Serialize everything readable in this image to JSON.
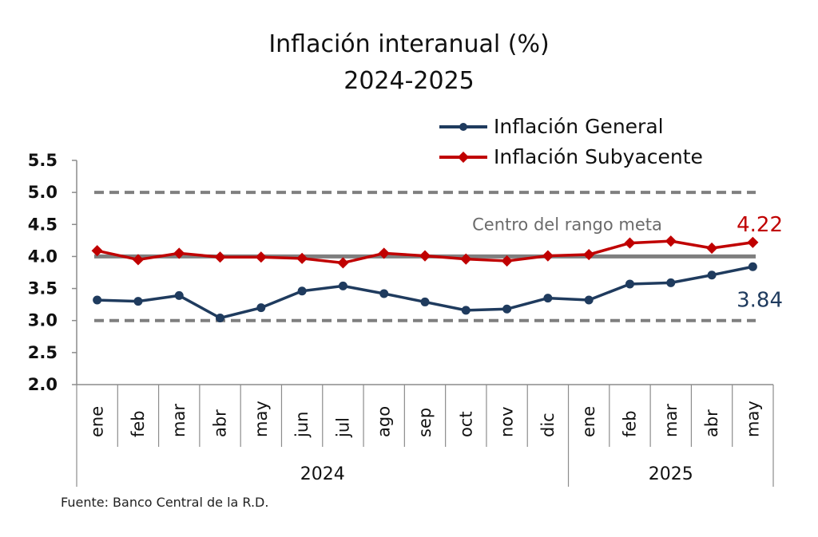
{
  "chart_data": {
    "type": "line",
    "title": "Inflación interanual (%)",
    "subtitle": "2024-2025",
    "categories": [
      "ene",
      "feb",
      "mar",
      "abr",
      "may",
      "jun",
      "jul",
      "ago",
      "sep",
      "oct",
      "nov",
      "dic",
      "ene",
      "feb",
      "mar",
      "abr",
      "may"
    ],
    "year_groups": [
      {
        "label": "2024",
        "count": 12
      },
      {
        "label": "2025",
        "count": 5
      }
    ],
    "series": [
      {
        "name": "Inflación General",
        "color": "#1f3b5e",
        "values": [
          3.32,
          3.3,
          3.39,
          3.04,
          3.2,
          3.46,
          3.54,
          3.42,
          3.29,
          3.16,
          3.18,
          3.35,
          3.32,
          3.57,
          3.59,
          3.71,
          3.84
        ]
      },
      {
        "name": "Inflación Subyacente",
        "color": "#c00000",
        "values": [
          4.09,
          3.95,
          4.05,
          3.99,
          3.99,
          3.97,
          3.9,
          4.05,
          4.01,
          3.96,
          3.93,
          4.01,
          4.03,
          4.21,
          4.24,
          4.13,
          4.22
        ]
      }
    ],
    "ylim": [
      2.0,
      5.5
    ],
    "yticks": [
      "2.0",
      "2.5",
      "3.0",
      "3.5",
      "4.0",
      "4.5",
      "5.0",
      "5.5"
    ],
    "reference_lines": [
      {
        "value": 5.0,
        "style": "dashed",
        "color": "#7f7f7f"
      },
      {
        "value": 4.0,
        "style": "solid",
        "color": "#7f7f7f"
      },
      {
        "value": 3.0,
        "style": "dashed",
        "color": "#7f7f7f"
      }
    ],
    "annotation": "Centro del rango meta",
    "end_labels": [
      "3.84",
      "4.22"
    ],
    "legend_position": "top-right",
    "source": "Fuente: Banco Central de la R.D."
  }
}
